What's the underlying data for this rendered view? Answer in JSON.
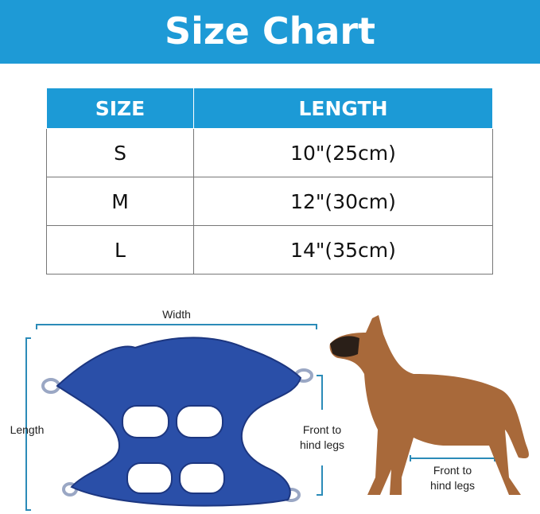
{
  "title": "Size Chart",
  "table": {
    "headers": [
      "SIZE",
      "LENGTH"
    ],
    "rows": [
      {
        "size": "S",
        "length": "10\"(25cm)"
      },
      {
        "size": "M",
        "length": "12\"(30cm)"
      },
      {
        "size": "L",
        "length": "14\"(35cm)"
      }
    ]
  },
  "diagram": {
    "width_label": "Width",
    "length_label": "Length",
    "harness_label": "Front to hind legs",
    "dog_label": "Front to hind legs"
  },
  "colors": {
    "accent": "#1e9ad6",
    "harness": "#2a4fa8",
    "dimension_line": "#2b8bb8",
    "dog": "#a8693a"
  }
}
